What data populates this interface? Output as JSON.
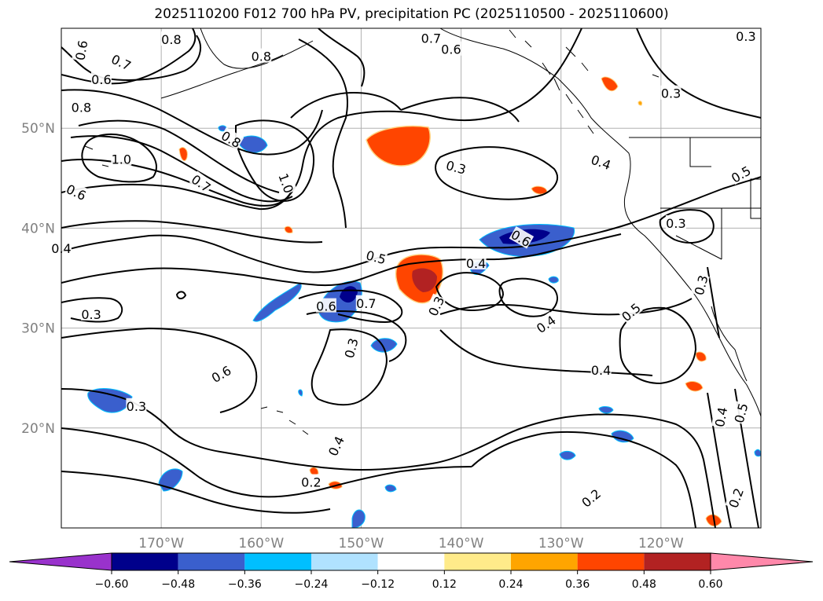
{
  "title": "2025110200 F012 700 hPa PV, precipitation PC (2025110500 - 2025110600)",
  "map": {
    "lon_range": [
      -180,
      -110
    ],
    "lat_range": [
      10,
      60
    ],
    "lat_ticks": [
      {
        "value": 20,
        "label": "20°N"
      },
      {
        "value": 30,
        "label": "30°N"
      },
      {
        "value": 40,
        "label": "40°N"
      },
      {
        "value": 50,
        "label": "50°N"
      }
    ],
    "lon_ticks": [
      {
        "value": -170,
        "label": "170°W"
      },
      {
        "value": -160,
        "label": "160°W"
      },
      {
        "value": -150,
        "label": "150°W"
      },
      {
        "value": -140,
        "label": "140°W"
      },
      {
        "value": -130,
        "label": "130°W"
      },
      {
        "value": -120,
        "label": "120°W"
      }
    ],
    "grid": true,
    "contour_labels": [
      {
        "text": "0.6",
        "lon": -178,
        "lat": 57.8,
        "rot": -80
      },
      {
        "text": "0.7",
        "lon": -174,
        "lat": 56.6,
        "rot": 25
      },
      {
        "text": "0.8",
        "lon": -169,
        "lat": 58.9,
        "rot": 0
      },
      {
        "text": "0.8",
        "lon": -160,
        "lat": 57.2,
        "rot": 0
      },
      {
        "text": "0.6",
        "lon": -176,
        "lat": 54.9,
        "rot": 0
      },
      {
        "text": "0.8",
        "lon": -178,
        "lat": 52.1,
        "rot": 0
      },
      {
        "text": "1.0",
        "lon": -174,
        "lat": 46.9,
        "rot": 0
      },
      {
        "text": "0.6",
        "lon": -178.5,
        "lat": 43.6,
        "rot": 25
      },
      {
        "text": "0.8",
        "lon": -163,
        "lat": 48.9,
        "rot": 30
      },
      {
        "text": "0.7",
        "lon": -166,
        "lat": 44.5,
        "rot": 35
      },
      {
        "text": "1.0",
        "lon": -157.5,
        "lat": 44.5,
        "rot": 70
      },
      {
        "text": "0.4",
        "lon": -180,
        "lat": 38.0,
        "rot": 0
      },
      {
        "text": "0.3",
        "lon": -177,
        "lat": 31.4,
        "rot": 0
      },
      {
        "text": "0.7",
        "lon": -143,
        "lat": 59.0,
        "rot": 0
      },
      {
        "text": "0.6",
        "lon": -141,
        "lat": 57.9,
        "rot": 0
      },
      {
        "text": "0.3",
        "lon": -111.5,
        "lat": 59.2,
        "rot": 0
      },
      {
        "text": "0.3",
        "lon": -119,
        "lat": 53.5,
        "rot": 0
      },
      {
        "text": "0.4",
        "lon": -126,
        "lat": 46.6,
        "rot": 20
      },
      {
        "text": "0.5",
        "lon": -112,
        "lat": 45.4,
        "rot": -30
      },
      {
        "text": "0.3",
        "lon": -140.5,
        "lat": 46.1,
        "rot": 15
      },
      {
        "text": "0.3",
        "lon": -118.5,
        "lat": 40.5,
        "rot": 0
      },
      {
        "text": "0.6",
        "lon": -134,
        "lat": 39.0,
        "rot": 30
      },
      {
        "text": "0.4",
        "lon": -138.5,
        "lat": 36.5,
        "rot": 0
      },
      {
        "text": "0.5",
        "lon": -148.5,
        "lat": 37.1,
        "rot": 15
      },
      {
        "text": "0.6",
        "lon": -153.5,
        "lat": 32.2,
        "rot": 0
      },
      {
        "text": "0.7",
        "lon": -149.5,
        "lat": 32.5,
        "rot": 0
      },
      {
        "text": "0.3",
        "lon": -142.5,
        "lat": 32.2,
        "rot": -65
      },
      {
        "text": "0.3",
        "lon": -116,
        "lat": 34.3,
        "rot": -75
      },
      {
        "text": "0.5",
        "lon": -123,
        "lat": 31.6,
        "rot": -40
      },
      {
        "text": "0.4",
        "lon": -131.5,
        "lat": 30.4,
        "rot": -35
      },
      {
        "text": "0.3",
        "lon": -151,
        "lat": 28.0,
        "rot": -75
      },
      {
        "text": "0.6",
        "lon": -164,
        "lat": 25.4,
        "rot": -30
      },
      {
        "text": "0.4",
        "lon": -126,
        "lat": 25.8,
        "rot": 0
      },
      {
        "text": "0.3",
        "lon": -172.5,
        "lat": 22.2,
        "rot": 0
      },
      {
        "text": "0.4",
        "lon": -152.5,
        "lat": 18.2,
        "rot": -65
      },
      {
        "text": "0.4",
        "lon": -114,
        "lat": 21.1,
        "rot": -80
      },
      {
        "text": "0.5",
        "lon": -112,
        "lat": 21.5,
        "rot": -75
      },
      {
        "text": "0.2",
        "lon": -155,
        "lat": 14.6,
        "rot": 0
      },
      {
        "text": "0.2",
        "lon": -127,
        "lat": 13.0,
        "rot": -40
      },
      {
        "text": "0.2",
        "lon": -112.5,
        "lat": 13.0,
        "rot": -70
      }
    ]
  },
  "colorbar": {
    "colors": [
      "#9932cc",
      "#00008b",
      "#3a5fcd",
      "#00bfff",
      "#b0e2ff",
      "#ffffff",
      "#ffeb8a",
      "#ffa500",
      "#ff4500",
      "#b22222",
      "#ff88aa"
    ],
    "tick_labels": [
      "−0.60",
      "−0.48",
      "−0.36",
      "−0.24",
      "−0.12",
      "0.12",
      "0.24",
      "0.36",
      "0.48",
      "0.60"
    ]
  }
}
